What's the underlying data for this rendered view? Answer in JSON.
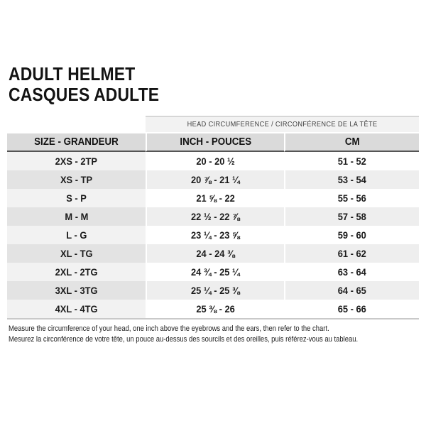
{
  "header": {
    "title_en": "ADULT HELMET",
    "title_fr": "CASQUES ADULTE"
  },
  "chart_data": {
    "type": "table",
    "title": "ADULT HELMET / CASQUES ADULTE",
    "group_header": "HEAD CIRCUMFERENCE / CIRCONFÉRENCE DE LA TÊTE",
    "columns": [
      "SIZE - GRANDEUR",
      "INCH - POUCES",
      "CM"
    ],
    "rows": [
      {
        "size": "2XS - 2TP",
        "inch": "20 - 20 ½",
        "cm": "51 - 52"
      },
      {
        "size": "XS - TP",
        "inch": "20 ⅞ - 21 ¼",
        "cm": "53 - 54"
      },
      {
        "size": "S - P",
        "inch": "21 ⅝ - 22",
        "cm": "55 - 56"
      },
      {
        "size": "M - M",
        "inch": "22 ½ - 22 ⅞",
        "cm": "57 - 58"
      },
      {
        "size": "L - G",
        "inch": "23 ¼ - 23 ⅝",
        "cm": "59 - 60"
      },
      {
        "size": "XL - TG",
        "inch": "24 - 24 ⅜",
        "cm": "61 - 62"
      },
      {
        "size": "2XL - 2TG",
        "inch": "24 ¾ - 25 ¼",
        "cm": "63 - 64"
      },
      {
        "size": "3XL - 3TG",
        "inch": "25 ¼ - 25 ⅜",
        "cm": "64 - 65"
      },
      {
        "size": "4XL - 4TG",
        "inch": "25 ⅜ - 26",
        "cm": "65 - 66"
      }
    ],
    "layout": {
      "grid": "off",
      "row_striping": true
    }
  },
  "footer": {
    "note_en": "Measure the circumference of your head, one inch above the eyebrows and the ears, then refer to the chart.",
    "note_fr": "Mesurez la circonférence de votre tête, un pouce au-dessus des sourcils et des oreilles, puis référez-vous au tableau."
  },
  "colors": {
    "page_bg": "#ffffff",
    "column_header_bg": "#dadada",
    "group_header_bg": "#f2f2f2",
    "size_column_bg": "#f2f2f2",
    "size_column_alt_bg": "#e3e3e3",
    "row_alt_bg": "#eeeeee",
    "header_divider": "#555555",
    "table_bottom_border": "#c9c9c9",
    "text": "#1b1b1b"
  }
}
